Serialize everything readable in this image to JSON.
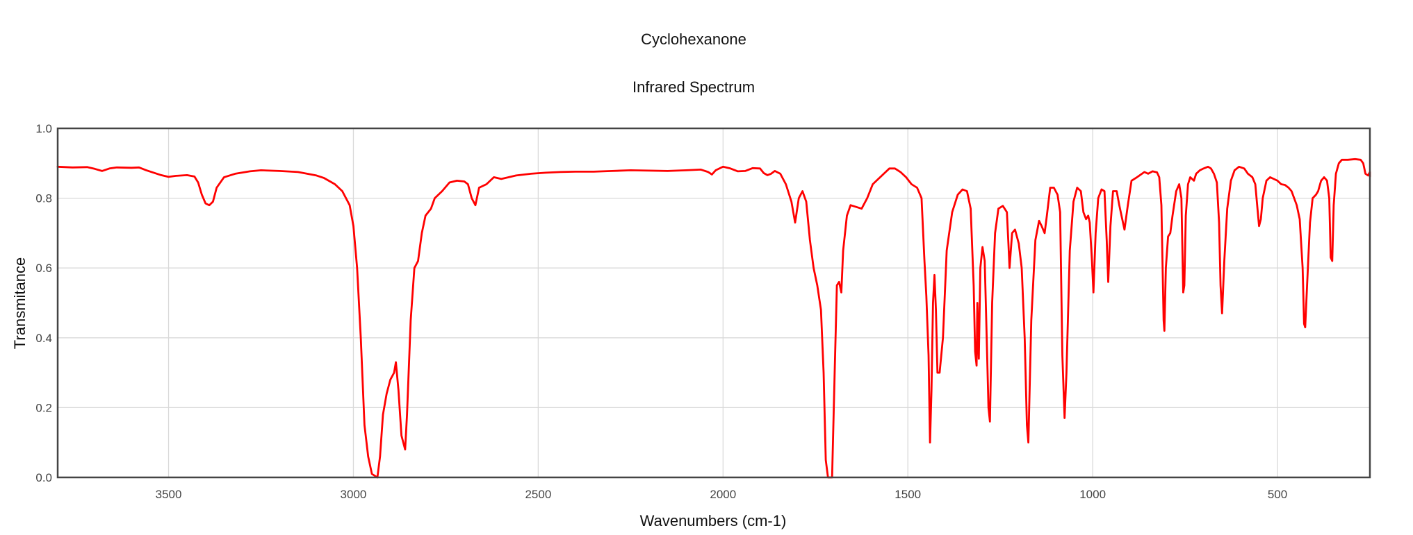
{
  "chart_data": {
    "type": "line",
    "title": "Cyclohexanone",
    "subtitle": "Infrared Spectrum",
    "xlabel": "Wavenumbers (cm-1)",
    "ylabel": "Transmitance",
    "xlim": [
      3800,
      250
    ],
    "ylim": [
      0,
      1
    ],
    "x_reversed": true,
    "grid": true,
    "legend": "none",
    "x_ticks": [
      3500,
      3000,
      2500,
      2000,
      1500,
      1000,
      500
    ],
    "x_tick_labels": [
      "3500",
      "3000",
      "2500",
      "2000",
      "1500",
      "1000",
      "500"
    ],
    "y_ticks": [
      0,
      0.2,
      0.4,
      0.6,
      0.8,
      1.0
    ],
    "y_tick_labels": [
      "0.0",
      "0.2",
      "0.4",
      "0.6",
      "0.8",
      "1.0"
    ],
    "line_color": "#ff0000",
    "series": [
      {
        "points": [
          [
            3800,
            0.89
          ],
          [
            3760,
            0.888
          ],
          [
            3720,
            0.889
          ],
          [
            3700,
            0.884
          ],
          [
            3680,
            0.878
          ],
          [
            3660,
            0.885
          ],
          [
            3640,
            0.888
          ],
          [
            3600,
            0.887
          ],
          [
            3580,
            0.888
          ],
          [
            3560,
            0.88
          ],
          [
            3520,
            0.866
          ],
          [
            3500,
            0.861
          ],
          [
            3480,
            0.864
          ],
          [
            3450,
            0.866
          ],
          [
            3430,
            0.862
          ],
          [
            3420,
            0.845
          ],
          [
            3410,
            0.81
          ],
          [
            3400,
            0.785
          ],
          [
            3390,
            0.78
          ],
          [
            3380,
            0.79
          ],
          [
            3370,
            0.83
          ],
          [
            3350,
            0.86
          ],
          [
            3320,
            0.87
          ],
          [
            3280,
            0.877
          ],
          [
            3250,
            0.88
          ],
          [
            3200,
            0.878
          ],
          [
            3150,
            0.875
          ],
          [
            3100,
            0.865
          ],
          [
            3080,
            0.858
          ],
          [
            3050,
            0.84
          ],
          [
            3030,
            0.82
          ],
          [
            3010,
            0.78
          ],
          [
            3000,
            0.72
          ],
          [
            2990,
            0.6
          ],
          [
            2980,
            0.4
          ],
          [
            2970,
            0.15
          ],
          [
            2960,
            0.06
          ],
          [
            2950,
            0.01
          ],
          [
            2935,
            0.0
          ],
          [
            2928,
            0.06
          ],
          [
            2920,
            0.18
          ],
          [
            2910,
            0.24
          ],
          [
            2900,
            0.28
          ],
          [
            2890,
            0.3
          ],
          [
            2885,
            0.33
          ],
          [
            2878,
            0.25
          ],
          [
            2870,
            0.12
          ],
          [
            2860,
            0.08
          ],
          [
            2855,
            0.18
          ],
          [
            2845,
            0.45
          ],
          [
            2835,
            0.6
          ],
          [
            2825,
            0.62
          ],
          [
            2815,
            0.7
          ],
          [
            2805,
            0.75
          ],
          [
            2790,
            0.77
          ],
          [
            2780,
            0.8
          ],
          [
            2760,
            0.82
          ],
          [
            2740,
            0.845
          ],
          [
            2720,
            0.85
          ],
          [
            2700,
            0.848
          ],
          [
            2690,
            0.84
          ],
          [
            2680,
            0.8
          ],
          [
            2670,
            0.78
          ],
          [
            2660,
            0.83
          ],
          [
            2640,
            0.84
          ],
          [
            2620,
            0.86
          ],
          [
            2600,
            0.855
          ],
          [
            2560,
            0.865
          ],
          [
            2520,
            0.87
          ],
          [
            2480,
            0.873
          ],
          [
            2440,
            0.875
          ],
          [
            2400,
            0.876
          ],
          [
            2350,
            0.876
          ],
          [
            2300,
            0.878
          ],
          [
            2250,
            0.88
          ],
          [
            2200,
            0.879
          ],
          [
            2150,
            0.878
          ],
          [
            2100,
            0.88
          ],
          [
            2060,
            0.882
          ],
          [
            2040,
            0.875
          ],
          [
            2030,
            0.868
          ],
          [
            2020,
            0.88
          ],
          [
            2000,
            0.89
          ],
          [
            1980,
            0.885
          ],
          [
            1960,
            0.877
          ],
          [
            1940,
            0.878
          ],
          [
            1920,
            0.886
          ],
          [
            1900,
            0.885
          ],
          [
            1890,
            0.872
          ],
          [
            1880,
            0.866
          ],
          [
            1870,
            0.87
          ],
          [
            1860,
            0.878
          ],
          [
            1845,
            0.87
          ],
          [
            1830,
            0.84
          ],
          [
            1815,
            0.79
          ],
          [
            1805,
            0.73
          ],
          [
            1795,
            0.8
          ],
          [
            1785,
            0.82
          ],
          [
            1775,
            0.79
          ],
          [
            1765,
            0.68
          ],
          [
            1755,
            0.6
          ],
          [
            1745,
            0.55
          ],
          [
            1735,
            0.48
          ],
          [
            1728,
            0.3
          ],
          [
            1722,
            0.05
          ],
          [
            1716,
            0.0
          ],
          [
            1705,
            0.0
          ],
          [
            1698,
            0.3
          ],
          [
            1692,
            0.55
          ],
          [
            1686,
            0.56
          ],
          [
            1680,
            0.53
          ],
          [
            1675,
            0.65
          ],
          [
            1665,
            0.75
          ],
          [
            1655,
            0.78
          ],
          [
            1640,
            0.775
          ],
          [
            1625,
            0.77
          ],
          [
            1610,
            0.8
          ],
          [
            1595,
            0.84
          ],
          [
            1580,
            0.855
          ],
          [
            1565,
            0.87
          ],
          [
            1550,
            0.885
          ],
          [
            1535,
            0.885
          ],
          [
            1520,
            0.875
          ],
          [
            1505,
            0.86
          ],
          [
            1490,
            0.84
          ],
          [
            1475,
            0.83
          ],
          [
            1463,
            0.8
          ],
          [
            1455,
            0.62
          ],
          [
            1450,
            0.52
          ],
          [
            1444,
            0.35
          ],
          [
            1440,
            0.1
          ],
          [
            1436,
            0.25
          ],
          [
            1432,
            0.5
          ],
          [
            1428,
            0.58
          ],
          [
            1424,
            0.48
          ],
          [
            1420,
            0.3
          ],
          [
            1414,
            0.3
          ],
          [
            1405,
            0.4
          ],
          [
            1395,
            0.65
          ],
          [
            1380,
            0.76
          ],
          [
            1365,
            0.81
          ],
          [
            1352,
            0.825
          ],
          [
            1340,
            0.82
          ],
          [
            1330,
            0.77
          ],
          [
            1322,
            0.55
          ],
          [
            1318,
            0.36
          ],
          [
            1314,
            0.32
          ],
          [
            1312,
            0.5
          ],
          [
            1308,
            0.34
          ],
          [
            1304,
            0.6
          ],
          [
            1298,
            0.66
          ],
          [
            1292,
            0.62
          ],
          [
            1288,
            0.45
          ],
          [
            1282,
            0.2
          ],
          [
            1278,
            0.16
          ],
          [
            1272,
            0.5
          ],
          [
            1264,
            0.7
          ],
          [
            1255,
            0.77
          ],
          [
            1243,
            0.778
          ],
          [
            1232,
            0.76
          ],
          [
            1228,
            0.67
          ],
          [
            1225,
            0.6
          ],
          [
            1218,
            0.7
          ],
          [
            1210,
            0.71
          ],
          [
            1200,
            0.67
          ],
          [
            1192,
            0.6
          ],
          [
            1184,
            0.4
          ],
          [
            1178,
            0.15
          ],
          [
            1174,
            0.1
          ],
          [
            1166,
            0.45
          ],
          [
            1155,
            0.68
          ],
          [
            1145,
            0.735
          ],
          [
            1138,
            0.72
          ],
          [
            1130,
            0.7
          ],
          [
            1124,
            0.75
          ],
          [
            1115,
            0.83
          ],
          [
            1105,
            0.83
          ],
          [
            1095,
            0.81
          ],
          [
            1088,
            0.76
          ],
          [
            1082,
            0.35
          ],
          [
            1076,
            0.17
          ],
          [
            1071,
            0.3
          ],
          [
            1062,
            0.65
          ],
          [
            1052,
            0.79
          ],
          [
            1042,
            0.83
          ],
          [
            1032,
            0.82
          ],
          [
            1025,
            0.76
          ],
          [
            1018,
            0.74
          ],
          [
            1012,
            0.75
          ],
          [
            1008,
            0.73
          ],
          [
            1002,
            0.62
          ],
          [
            998,
            0.53
          ],
          [
            992,
            0.7
          ],
          [
            985,
            0.8
          ],
          [
            976,
            0.825
          ],
          [
            968,
            0.82
          ],
          [
            962,
            0.68
          ],
          [
            958,
            0.56
          ],
          [
            952,
            0.72
          ],
          [
            945,
            0.82
          ],
          [
            935,
            0.82
          ],
          [
            928,
            0.78
          ],
          [
            922,
            0.75
          ],
          [
            914,
            0.71
          ],
          [
            905,
            0.78
          ],
          [
            895,
            0.85
          ],
          [
            880,
            0.86
          ],
          [
            860,
            0.875
          ],
          [
            850,
            0.87
          ],
          [
            838,
            0.877
          ],
          [
            826,
            0.874
          ],
          [
            820,
            0.86
          ],
          [
            814,
            0.78
          ],
          [
            808,
            0.45
          ],
          [
            806,
            0.42
          ],
          [
            802,
            0.6
          ],
          [
            796,
            0.69
          ],
          [
            790,
            0.7
          ],
          [
            784,
            0.75
          ],
          [
            774,
            0.82
          ],
          [
            766,
            0.84
          ],
          [
            760,
            0.8
          ],
          [
            755,
            0.53
          ],
          [
            752,
            0.55
          ],
          [
            748,
            0.75
          ],
          [
            742,
            0.84
          ],
          [
            736,
            0.86
          ],
          [
            726,
            0.85
          ],
          [
            720,
            0.87
          ],
          [
            710,
            0.88
          ],
          [
            700,
            0.885
          ],
          [
            688,
            0.89
          ],
          [
            680,
            0.885
          ],
          [
            672,
            0.87
          ],
          [
            664,
            0.845
          ],
          [
            658,
            0.73
          ],
          [
            654,
            0.55
          ],
          [
            650,
            0.47
          ],
          [
            644,
            0.62
          ],
          [
            636,
            0.77
          ],
          [
            626,
            0.85
          ],
          [
            616,
            0.88
          ],
          [
            604,
            0.89
          ],
          [
            590,
            0.885
          ],
          [
            580,
            0.87
          ],
          [
            568,
            0.86
          ],
          [
            560,
            0.84
          ],
          [
            555,
            0.78
          ],
          [
            550,
            0.72
          ],
          [
            545,
            0.74
          ],
          [
            540,
            0.8
          ],
          [
            530,
            0.85
          ],
          [
            520,
            0.86
          ],
          [
            510,
            0.855
          ],
          [
            500,
            0.85
          ],
          [
            490,
            0.84
          ],
          [
            480,
            0.838
          ],
          [
            470,
            0.83
          ],
          [
            462,
            0.82
          ],
          [
            455,
            0.8
          ],
          [
            448,
            0.78
          ],
          [
            440,
            0.74
          ],
          [
            432,
            0.6
          ],
          [
            428,
            0.44
          ],
          [
            425,
            0.43
          ],
          [
            420,
            0.55
          ],
          [
            412,
            0.73
          ],
          [
            405,
            0.8
          ],
          [
            396,
            0.81
          ],
          [
            390,
            0.82
          ],
          [
            382,
            0.85
          ],
          [
            374,
            0.86
          ],
          [
            366,
            0.85
          ],
          [
            360,
            0.8
          ],
          [
            356,
            0.63
          ],
          [
            352,
            0.62
          ],
          [
            348,
            0.78
          ],
          [
            342,
            0.87
          ],
          [
            334,
            0.9
          ],
          [
            326,
            0.91
          ],
          [
            310,
            0.91
          ],
          [
            290,
            0.912
          ],
          [
            275,
            0.91
          ],
          [
            268,
            0.9
          ],
          [
            262,
            0.87
          ],
          [
            255,
            0.865
          ],
          [
            248,
            0.875
          ],
          [
            238,
            0.872
          ],
          [
            228,
            0.868
          ],
          [
            218,
            0.862
          ],
          [
            210,
            0.865
          ]
        ]
      }
    ]
  }
}
